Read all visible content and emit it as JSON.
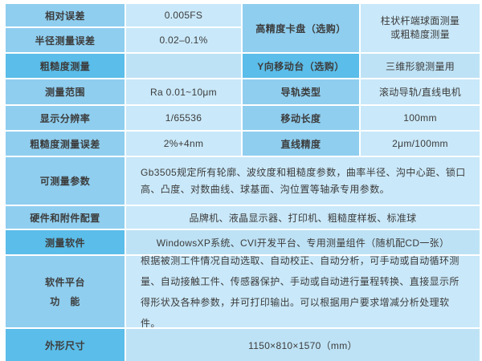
{
  "colors": {
    "label_medium": "#8FCEEF",
    "label_dark": "#5BBDE9",
    "value_light": "#C9E8F9",
    "value_shaded": "#BEE2F5",
    "text": "#3C3C3C",
    "grid_gap": "#FFFFFF"
  },
  "spec_table": {
    "left_rows": [
      {
        "label": "相对误差",
        "value": "0.005FS"
      },
      {
        "label": "半径测量误差",
        "value": "0.02–0.1%"
      },
      {
        "label": "粗糙度测量",
        "value": ""
      },
      {
        "label": "测量范围",
        "value": "Ra 0.01~10μm"
      },
      {
        "label": "显示分辨率",
        "value": "1/65536"
      },
      {
        "label": "粗糙度测量误差",
        "value": "2%+4nm"
      }
    ],
    "right_rows": [
      {
        "label": "高精度卡盘（选购）",
        "value_line1": "柱状杆端球面测量",
        "value_line2": "或粗糙度测量"
      },
      {
        "label": "Y向移动台（选购）",
        "value": "三维形貌测量用"
      },
      {
        "label": "导轨类型",
        "value": "滚动导轨/直线电机"
      },
      {
        "label": "移动长度",
        "value": "100mm"
      },
      {
        "label": "直线精度",
        "value": "2μm/100mm"
      }
    ],
    "full_rows": [
      {
        "label": "可测量参数",
        "value": "Gb3505规定所有轮廓、波纹度和粗糙度参数，曲率半径、沟中心距、锁口高、凸度、对数曲线、球基面、沟位置等轴承专用参数。"
      },
      {
        "label": "硬件和附件配置",
        "value": "品牌机、液晶显示器、打印机、粗糙度样板、标准球"
      },
      {
        "label": "测量软件",
        "value": "WindowsXP系统、CVI开发平台、专用测量组件（随机配CD一张）"
      },
      {
        "label_line1": "软件平台",
        "label_line2": "功　能",
        "value": "根据被测工件情况自动选取、自动校正、自动分析，可手动或自动循环测量、自动接触工件、传感器保护、手动或自动进行量程转换、直接显示所得形状及各种参数，并可打印输出。可以根据用户要求增减分析处理软件。"
      },
      {
        "label": "外形尺寸",
        "value": "1150×810×1570（mm）"
      }
    ]
  }
}
